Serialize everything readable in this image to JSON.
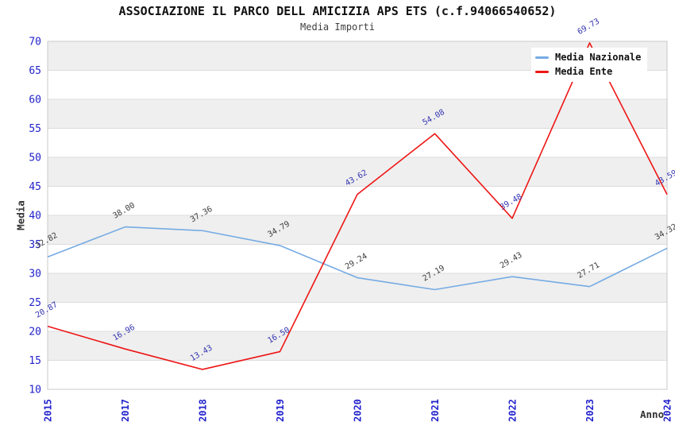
{
  "header": {
    "title": "ASSOCIAZIONE IL PARCO DELL AMICIZIA APS ETS (c.f.94066540652)",
    "subtitle": "Media Importi"
  },
  "chart_data": {
    "type": "line",
    "title": "ASSOCIAZIONE IL PARCO DELL AMICIZIA APS ETS (c.f.94066540652)",
    "subtitle": "Media Importi",
    "xlabel": "Anno",
    "ylabel": "Media",
    "categories": [
      "2015",
      "2017",
      "2018",
      "2019",
      "2020",
      "2021",
      "2022",
      "2023",
      "2024"
    ],
    "ylim": [
      10,
      70
    ],
    "ytick_step": 5,
    "grid": "horizontal",
    "banded_background": true,
    "legend_position": "top-right",
    "series": [
      {
        "name": "Media Nazionale",
        "color": "#76abe3",
        "label_color": "#3d3d3d",
        "values": [
          32.82,
          38.0,
          37.36,
          34.79,
          29.24,
          27.19,
          29.43,
          27.71,
          34.32
        ]
      },
      {
        "name": "Media Ente",
        "color": "#ee1515",
        "label_color": "#3535b2",
        "values": [
          20.87,
          16.96,
          13.43,
          16.5,
          43.62,
          54.08,
          39.48,
          69.73,
          43.59
        ]
      }
    ],
    "style": {
      "tick_label_color": "#2222cc",
      "band_color": "#efefef",
      "grid_color": "#dcdcdc",
      "border_color": "#c9c9c9",
      "title_color": "#111111",
      "subtitle_color": "#3f3f3f",
      "axis_title_color": "#333333"
    }
  }
}
